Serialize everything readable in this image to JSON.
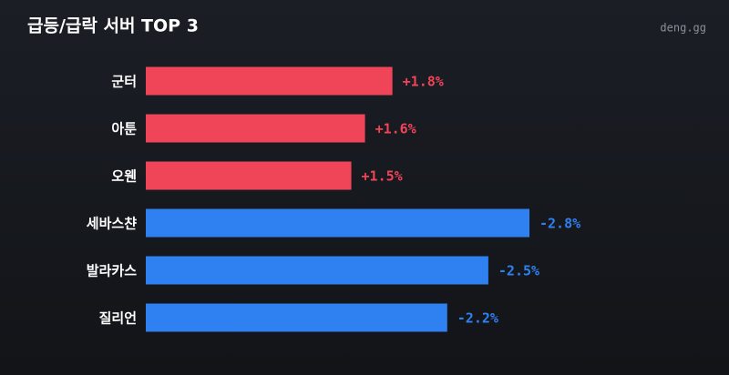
{
  "chart_data": {
    "type": "bar",
    "orientation": "horizontal",
    "title": "급등/급락 서버 TOP 3",
    "source": "deng.gg",
    "categories": [
      "군터",
      "아툰",
      "오웬",
      "세바스챤",
      "발라카스",
      "질리언"
    ],
    "values": [
      1.8,
      1.6,
      1.5,
      -2.8,
      -2.5,
      -2.2
    ],
    "value_labels": [
      "+1.8%",
      "+1.6%",
      "+1.5%",
      "-2.8%",
      "-2.5%",
      "-2.2%"
    ],
    "colors": [
      "#f04458",
      "#f04458",
      "#f04458",
      "#2f80f0",
      "#2f80f0",
      "#2f80f0"
    ]
  }
}
